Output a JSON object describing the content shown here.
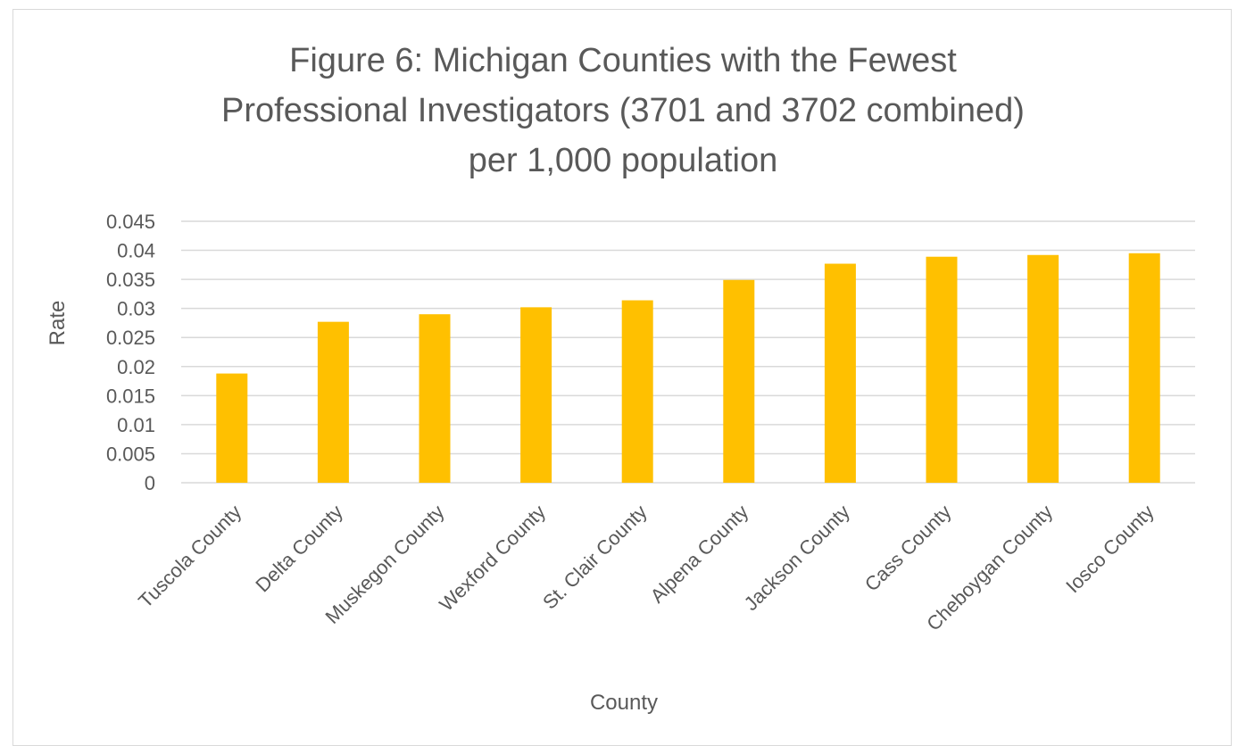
{
  "chart_data": {
    "type": "bar",
    "title_lines": [
      "Figure 6: Michigan Counties with the Fewest",
      "Professional Investigators (3701 and 3702 combined)",
      "per 1,000 population"
    ],
    "xlabel": "County",
    "ylabel": "Rate",
    "ylim": [
      0,
      0.045
    ],
    "yticks": [
      "0",
      "0.005",
      "0.01",
      "0.015",
      "0.02",
      "0.025",
      "0.03",
      "0.035",
      "0.04",
      "0.045"
    ],
    "grid": true,
    "legend": "none",
    "bar_color": "#ffc000",
    "grid_color": "#d9d9d9",
    "categories": [
      "Tuscola County",
      "Delta County",
      "Muskegon County",
      "Wexford County",
      "St. Clair County",
      "Alpena County",
      "Jackson County",
      "Cass County",
      "Cheboygan County",
      "Iosco County"
    ],
    "values": [
      0.0188,
      0.0277,
      0.029,
      0.0302,
      0.0314,
      0.0349,
      0.0377,
      0.0389,
      0.0392,
      0.0395
    ]
  }
}
